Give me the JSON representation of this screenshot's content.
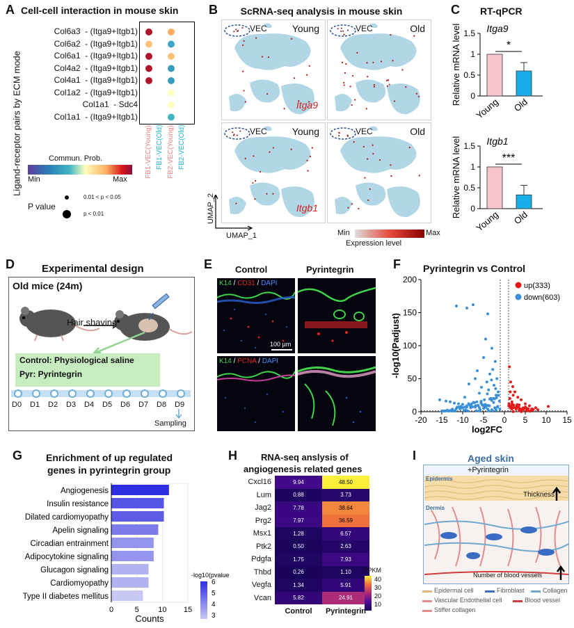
{
  "panels": {
    "A": {
      "label": "A",
      "title": "Cell-cell interaction in mouse skin",
      "ylabel": "Ligand-receptor pairs by ECM mode",
      "rows": [
        "Col6a3  - (Itga9+Itgb1)",
        "Col6a2  - (Itga9+Itgb1)",
        "Col6a1  - (Itga9+Itgb1)",
        "Col4a2  - (Itga9+Itgb1)",
        "Col4a1  - (Itga9+Itgb1)",
        "Col1a2  - (Itga9+Itgb1)",
        "Col1a1  - Sdc4",
        "Col1a1  - (Itga9+Itgb1)"
      ],
      "columns": [
        "FB1-VEC(Young)",
        "FB1-VEC(Old)",
        "FB2-VEC(Young)",
        "FB2-VEC(Old)"
      ],
      "column_colors": [
        "#e8857f",
        "#29b6d6",
        "#e8857f",
        "#29b6d6"
      ],
      "dots": [
        {
          "row": 0,
          "col": 0,
          "prob": 0.95,
          "big": true
        },
        {
          "row": 0,
          "col": 2,
          "prob": 0.75,
          "big": true
        },
        {
          "row": 1,
          "col": 0,
          "prob": 0.7,
          "big": true
        },
        {
          "row": 1,
          "col": 2,
          "prob": 0.35,
          "big": true
        },
        {
          "row": 2,
          "col": 0,
          "prob": 0.95,
          "big": true
        },
        {
          "row": 2,
          "col": 2,
          "prob": 0.7,
          "big": true
        },
        {
          "row": 3,
          "col": 0,
          "prob": 0.95,
          "big": true
        },
        {
          "row": 3,
          "col": 2,
          "prob": 0.3,
          "big": true
        },
        {
          "row": 4,
          "col": 0,
          "prob": 0.95,
          "big": true
        },
        {
          "row": 4,
          "col": 2,
          "prob": 0.3,
          "big": true
        },
        {
          "row": 5,
          "col": 2,
          "prob": 0.55,
          "big": true
        },
        {
          "row": 6,
          "col": 2,
          "prob": 0.55,
          "big": true
        },
        {
          "row": 7,
          "col": 2,
          "prob": 0.4,
          "big": true
        }
      ],
      "legend_title": "Commun. Prob.",
      "legend_min": "Min",
      "legend_max": "Max",
      "pvalue_title": "P value",
      "pvalue_small": "0.01 < p < 0.05",
      "pvalue_big": "p < 0.01"
    },
    "B": {
      "label": "B",
      "title": "ScRNA-seq analysis in mouse skin",
      "vec": "VEC",
      "young": "Young",
      "old": "Old",
      "gene1": "Itga9",
      "gene2": "Itgb1",
      "xaxis": "UMAP_1",
      "yaxis": "UMAP_2",
      "legend_min": "Min",
      "legend_max": "Max",
      "legend_title": "Expression level"
    },
    "C": {
      "label": "C",
      "title": "RT-qPCR",
      "ylabel": "Relative mRNA level",
      "sig1": "*",
      "sig2": "***"
    },
    "D": {
      "label": "D",
      "title": "Experimental design",
      "box_title": "Old mice (24m)",
      "hair": "Hair shaving",
      "control": "Control: Physiological saline",
      "pyr": "Pyr: Pyrintegrin",
      "days": [
        "D0",
        "D1",
        "D2",
        "D3",
        "D4",
        "D5",
        "D6",
        "D7",
        "D8",
        "D9"
      ],
      "sampling": "Sampling"
    },
    "E": {
      "label": "E",
      "col1": "Control",
      "col2": "Pyrintegrin",
      "row1": [
        "K14",
        " / ",
        "CD31",
        " / ",
        "DAPI"
      ],
      "row2": [
        "K14",
        " / ",
        "PCNA",
        " / ",
        "DAPI"
      ],
      "scalebar": "100 μm"
    },
    "F": {
      "label": "F",
      "title": "Pyrintegrin vs Control",
      "legend_up": "up(333)",
      "legend_down": "down(603)"
    },
    "G": {
      "label": "G",
      "title_line1": "Enrichment of up regulated",
      "title_line2": "genes in pyrintegrin group",
      "legend_title": "-log10(pvalue)",
      "legend_ticks": [
        "6",
        "5",
        "4",
        "3"
      ]
    },
    "H": {
      "label": "H",
      "title_line1": "RNA-seq anslysis of",
      "title_line2": "angiogenesis related genes",
      "legend_title": "FPKM",
      "legend_ticks": [
        "40",
        "30",
        "20",
        "10"
      ]
    },
    "I": {
      "label": "I",
      "title": "Aged skin",
      "subtitle": "+Pyrintegrin",
      "epidermis": "Epidermis",
      "dermis": "Dermis",
      "thickness": "Thickness",
      "vessels": "Number of blood vessels",
      "legend": [
        "Epidermal cell",
        "Fibroblast",
        "Collagen",
        "Vascular Endothelial cell",
        "Blood vessel",
        "Stiffer collagen"
      ]
    }
  },
  "chart_data": [
    {
      "type": "bar",
      "panel": "C-top",
      "title": "Itga9",
      "categories": [
        "Young",
        "Old"
      ],
      "values": [
        1.0,
        0.6
      ],
      "errors": [
        0,
        0.2
      ],
      "colors": [
        "#f7c6cc",
        "#1aaee8"
      ],
      "ylabel": "Relative mRNA level",
      "ylim": [
        0,
        1.5
      ],
      "yticks": [
        "0",
        "0.5",
        "1",
        "1.5"
      ]
    },
    {
      "type": "bar",
      "panel": "C-bottom",
      "title": "Itgb1",
      "categories": [
        "Young",
        "Old"
      ],
      "values": [
        1.0,
        0.33
      ],
      "errors": [
        0,
        0.23
      ],
      "colors": [
        "#f7c6cc",
        "#1aaee8"
      ],
      "ylabel": "Relative mRNA level",
      "ylim": [
        0,
        1.5
      ],
      "yticks": [
        "0",
        "0.5",
        "1",
        "1.5"
      ]
    },
    {
      "type": "scatter",
      "panel": "F",
      "title": "Pyrintegrin vs Control",
      "xlabel": "log2FC",
      "ylabel": "-log10(Padjust)",
      "xlim": [
        -20,
        15
      ],
      "ylim": [
        0,
        200
      ],
      "xticks": [
        "-20",
        "-15",
        "-10",
        "-5",
        "0",
        "5",
        "10",
        "15"
      ],
      "yticks": [
        "0",
        "50",
        "100",
        "150",
        "200"
      ],
      "series": [
        {
          "name": "up(333)",
          "color": "#e31a1c",
          "points": [
            [
              1.2,
              68
            ],
            [
              1.5,
              45
            ],
            [
              2,
              38
            ],
            [
              2.5,
              30
            ],
            [
              3.2,
              22
            ],
            [
              4,
              18
            ],
            [
              5,
              12
            ],
            [
              6,
              9
            ],
            [
              7.5,
              6
            ],
            [
              10.5,
              8
            ],
            [
              1.3,
              20
            ],
            [
              1.8,
              15
            ],
            [
              2.2,
              10
            ],
            [
              3,
              8
            ],
            [
              1.6,
              5
            ],
            [
              2.8,
              4
            ],
            [
              4.5,
              3
            ],
            [
              6.5,
              2
            ],
            [
              1.1,
              12
            ],
            [
              2.4,
              6
            ],
            [
              3.6,
              5
            ],
            [
              5.5,
              4
            ],
            [
              8,
              3
            ],
            [
              1.4,
              30
            ],
            [
              2.1,
              25
            ]
          ]
        },
        {
          "name": "down(603)",
          "color": "#3a8fd9",
          "points": [
            [
              -11.5,
              160
            ],
            [
              -9,
              157
            ],
            [
              -7.5,
              162
            ],
            [
              -4,
              148
            ],
            [
              -4.5,
              110
            ],
            [
              -3,
              96
            ],
            [
              -2.2,
              76
            ],
            [
              -5,
              82
            ],
            [
              -6.5,
              62
            ],
            [
              -2.8,
              64
            ],
            [
              -3.5,
              57
            ],
            [
              -1.8,
              50
            ],
            [
              -7,
              50
            ],
            [
              -4.2,
              45
            ],
            [
              -8.5,
              42
            ],
            [
              -2.5,
              40
            ],
            [
              -5.5,
              37
            ],
            [
              -3.8,
              33
            ],
            [
              -1.5,
              30
            ],
            [
              -6,
              28
            ],
            [
              -2,
              25
            ],
            [
              -9.5,
              22
            ],
            [
              -3.2,
              20
            ],
            [
              -4.8,
              18
            ],
            [
              -1.2,
              16
            ],
            [
              -2.6,
              14
            ],
            [
              -13,
              15
            ],
            [
              -12,
              13
            ],
            [
              -11,
              12
            ],
            [
              -10,
              11
            ],
            [
              -9,
              9
            ],
            [
              -8,
              8
            ],
            [
              -7,
              7
            ],
            [
              -6,
              6
            ],
            [
              -5,
              5
            ],
            [
              -4,
              4
            ],
            [
              -3,
              3
            ],
            [
              -2,
              2
            ],
            [
              -14,
              16
            ],
            [
              -15.5,
              18
            ],
            [
              -1.6,
              8
            ],
            [
              -2.3,
              6
            ],
            [
              -3.6,
              9
            ],
            [
              -4.6,
              11
            ],
            [
              -5.6,
              13
            ],
            [
              -6.6,
              15
            ],
            [
              -1.1,
              4
            ],
            [
              -3.1,
              48
            ],
            [
              -2.1,
              35
            ],
            [
              -4.1,
              27
            ]
          ]
        }
      ]
    },
    {
      "type": "bar",
      "panel": "G",
      "orientation": "horizontal",
      "categories": [
        "Angiogenesis",
        "Insulin resistance",
        "Dilated cardiomyopathy",
        "Apelin signaling",
        "Circadian entrainment",
        "Adipocytokine signaling",
        "Glucagon signaling",
        "Cardiomyopathy",
        "Type II diabetes mellitus"
      ],
      "values": [
        11.3,
        10.3,
        10.3,
        9.2,
        8.3,
        8.3,
        7.3,
        7.3,
        6.2
      ],
      "neglog10_pvalue": [
        6.0,
        5.2,
        5.1,
        4.5,
        4.0,
        4.0,
        3.4,
        3.4,
        3.0
      ],
      "xlabel": "Counts",
      "xlim": [
        0,
        15
      ],
      "xticks": [
        "0",
        "5",
        "10",
        "15"
      ]
    },
    {
      "type": "heatmap",
      "panel": "H",
      "rows": [
        "Cxcl16",
        "Lum",
        "Jag2",
        "Prg2",
        "Msx1",
        "Ptk2",
        "Pdgfa",
        "Thbd",
        "Vegfa",
        "Vcan"
      ],
      "columns": [
        "Control",
        "Pyrintegrin"
      ],
      "values": [
        [
          "9.94",
          "48.50"
        ],
        [
          "0.88",
          "3.73"
        ],
        [
          "7.78",
          "38.64"
        ],
        [
          "7.97",
          "36.59"
        ],
        [
          "1.28",
          "6.57"
        ],
        [
          "0.50",
          "2.63"
        ],
        [
          "1.75",
          "7.93"
        ],
        [
          "0.26",
          "1.10"
        ],
        [
          "1.34",
          "5.91"
        ],
        [
          "5.82",
          "24.91"
        ]
      ]
    }
  ]
}
